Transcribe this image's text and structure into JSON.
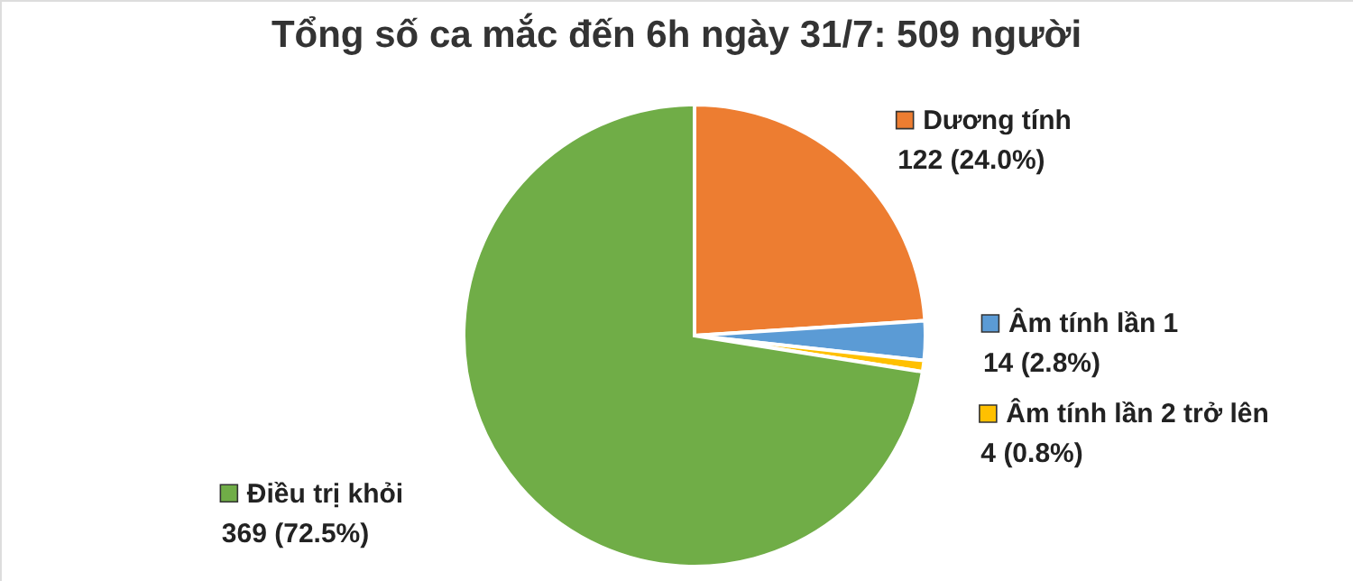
{
  "chart_data": {
    "type": "pie",
    "title": "Tổng số ca mắc đến 6h ngày 31/7: 509 người",
    "categories": [
      "Dương tính",
      "Âm tính lần 1",
      "Âm tính lần 2 trở lên",
      "Điều trị khỏi"
    ],
    "values": [
      122,
      14,
      4,
      369
    ],
    "colors": [
      "#ed7d31",
      "#5b9bd5",
      "#ffc000",
      "#70ad47"
    ],
    "value_labels": [
      "122 (24.0%)",
      "14 (2.8%)",
      "4 (0.8%)",
      "369 (72.5%)"
    ],
    "legend": "right"
  }
}
